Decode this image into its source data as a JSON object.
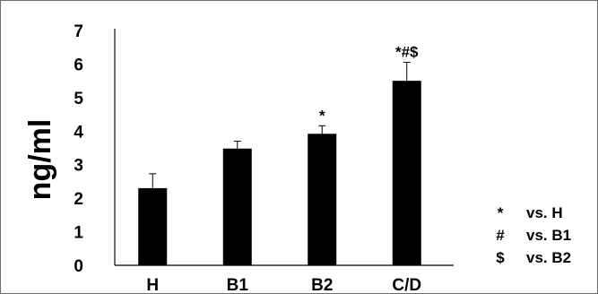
{
  "chart_data": {
    "type": "bar",
    "ylabel": "ng/ml",
    "ylim": [
      0,
      7
    ],
    "yticks": [
      0,
      1,
      2,
      3,
      4,
      5,
      6,
      7
    ],
    "grid": false,
    "categories": [
      "H",
      "B1",
      "B2",
      "C/D"
    ],
    "values": [
      2.3,
      3.48,
      3.92,
      5.5
    ],
    "errors": [
      0.43,
      0.22,
      0.24,
      0.55
    ],
    "annotations": [
      "",
      "",
      "*",
      "*#$"
    ],
    "bar_color": "#000000",
    "legend_placement": "bottom-right",
    "legend": [
      {
        "symbol": "*",
        "text": "vs. H"
      },
      {
        "symbol": "#",
        "text": "vs. B1"
      },
      {
        "symbol": "$",
        "text": "vs. B2"
      }
    ]
  }
}
